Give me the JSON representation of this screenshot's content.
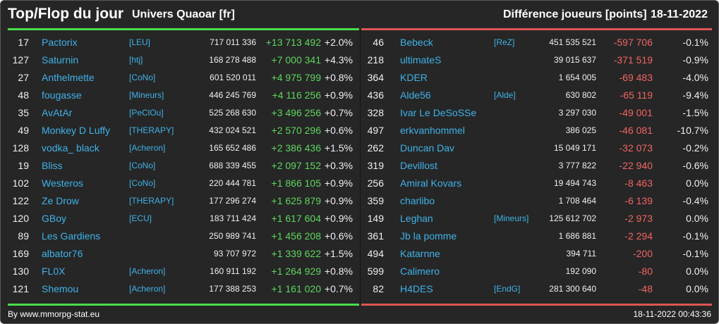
{
  "header": {
    "title": "Top/Flop du jour",
    "universe": "Univers Quaoar [fr]",
    "metric": "Différence joueurs [points]",
    "date": "18-11-2022"
  },
  "colors": {
    "top": "#4ade4a",
    "flop": "#e05555",
    "player": "#3fb2e8"
  },
  "top": [
    {
      "rank": "17",
      "player": "Pactorix",
      "alliance": "[LEU]",
      "points": "717 011 336",
      "diff": "+13 713 492",
      "pct": "+2.0%"
    },
    {
      "rank": "127",
      "player": "Saturnin",
      "alliance": "[htj]",
      "points": "168 278 488",
      "diff": "+7 000 341",
      "pct": "+4.3%"
    },
    {
      "rank": "27",
      "player": "Anthelmette",
      "alliance": "[CoNo]",
      "points": "601 520 011",
      "diff": "+4 975 799",
      "pct": "+0.8%"
    },
    {
      "rank": "48",
      "player": "fougasse",
      "alliance": "[Mineurs]",
      "points": "446 245 769",
      "diff": "+4 116 256",
      "pct": "+0.9%"
    },
    {
      "rank": "35",
      "player": "AvAtAr",
      "alliance": "[PeClOu]",
      "points": "525 268 630",
      "diff": "+3 496 256",
      "pct": "+0.7%"
    },
    {
      "rank": "49",
      "player": "Monkey D Luffy",
      "alliance": "[THERAPY]",
      "points": "432 024 521",
      "diff": "+2 570 296",
      "pct": "+0.6%"
    },
    {
      "rank": "128",
      "player": "vodka_ black",
      "alliance": "[Acheron]",
      "points": "165 652 486",
      "diff": "+2 386 436",
      "pct": "+1.5%"
    },
    {
      "rank": "19",
      "player": "Bliss",
      "alliance": "[CoNo]",
      "points": "688 339 455",
      "diff": "+2 097 152",
      "pct": "+0.3%"
    },
    {
      "rank": "102",
      "player": "Westeros",
      "alliance": "[CoNo]",
      "points": "220 444 781",
      "diff": "+1 866 105",
      "pct": "+0.9%"
    },
    {
      "rank": "122",
      "player": "Ze Drow",
      "alliance": "[THERAPY]",
      "points": "177 296 274",
      "diff": "+1 625 879",
      "pct": "+0.9%"
    },
    {
      "rank": "120",
      "player": "GBoy",
      "alliance": "[ECU]",
      "points": "183 711 424",
      "diff": "+1 617 604",
      "pct": "+0.9%"
    },
    {
      "rank": "89",
      "player": "Les Gardiens",
      "alliance": "",
      "points": "250 989 741",
      "diff": "+1 456 208",
      "pct": "+0.6%"
    },
    {
      "rank": "169",
      "player": "albator76",
      "alliance": "",
      "points": "93 707 972",
      "diff": "+1 339 622",
      "pct": "+1.5%"
    },
    {
      "rank": "130",
      "player": "FL0X",
      "alliance": "[Acheron]",
      "points": "160 911 192",
      "diff": "+1 264 929",
      "pct": "+0.8%"
    },
    {
      "rank": "121",
      "player": "Shemou",
      "alliance": "[Acheron]",
      "points": "177 388 253",
      "diff": "+1 161 020",
      "pct": "+0.7%"
    }
  ],
  "flop": [
    {
      "rank": "46",
      "player": "Bebeck",
      "alliance": "[ReZ]",
      "points": "451 535 521",
      "diff": "-597 706",
      "pct": "-0.1%"
    },
    {
      "rank": "218",
      "player": "ultimateS",
      "alliance": "",
      "points": "39 015 637",
      "diff": "-371 519",
      "pct": "-0.9%"
    },
    {
      "rank": "364",
      "player": "KDER",
      "alliance": "",
      "points": "1 654 005",
      "diff": "-69 483",
      "pct": "-4.0%"
    },
    {
      "rank": "436",
      "player": "Alde56",
      "alliance": "[Alde]",
      "points": "630 802",
      "diff": "-65 119",
      "pct": "-9.4%"
    },
    {
      "rank": "328",
      "player": "Ivar Le DeSoSSe",
      "alliance": "",
      "points": "3 297 030",
      "diff": "-49 001",
      "pct": "-1.5%"
    },
    {
      "rank": "497",
      "player": "erkvanhommel",
      "alliance": "",
      "points": "386 025",
      "diff": "-46 081",
      "pct": "-10.7%"
    },
    {
      "rank": "262",
      "player": "Duncan Dav",
      "alliance": "",
      "points": "15 049 171",
      "diff": "-32 073",
      "pct": "-0.2%"
    },
    {
      "rank": "319",
      "player": "Devillost",
      "alliance": "",
      "points": "3 777 822",
      "diff": "-22 940",
      "pct": "-0.6%"
    },
    {
      "rank": "256",
      "player": "Amiral Kovars",
      "alliance": "",
      "points": "19 494 743",
      "diff": "-8 463",
      "pct": "0.0%"
    },
    {
      "rank": "359",
      "player": "charlibo",
      "alliance": "",
      "points": "1 708 464",
      "diff": "-6 139",
      "pct": "-0.4%"
    },
    {
      "rank": "149",
      "player": "Leghan",
      "alliance": "[Mineurs]",
      "points": "125 612 702",
      "diff": "-2 973",
      "pct": "0.0%"
    },
    {
      "rank": "361",
      "player": "Jb la pomme",
      "alliance": "",
      "points": "1 686 881",
      "diff": "-2 294",
      "pct": "-0.1%"
    },
    {
      "rank": "494",
      "player": "Katarnne",
      "alliance": "",
      "points": "394 711",
      "diff": "-200",
      "pct": "-0.1%"
    },
    {
      "rank": "599",
      "player": "Calimero",
      "alliance": "",
      "points": "192 090",
      "diff": "-80",
      "pct": "0.0%"
    },
    {
      "rank": "82",
      "player": "H4DES",
      "alliance": "[EndG]",
      "points": "281 300 640",
      "diff": "-48",
      "pct": "0.0%"
    }
  ],
  "footer": {
    "source": "By www.mmorpg-stat.eu",
    "timestamp": "18-11-2022 00:43:36"
  }
}
